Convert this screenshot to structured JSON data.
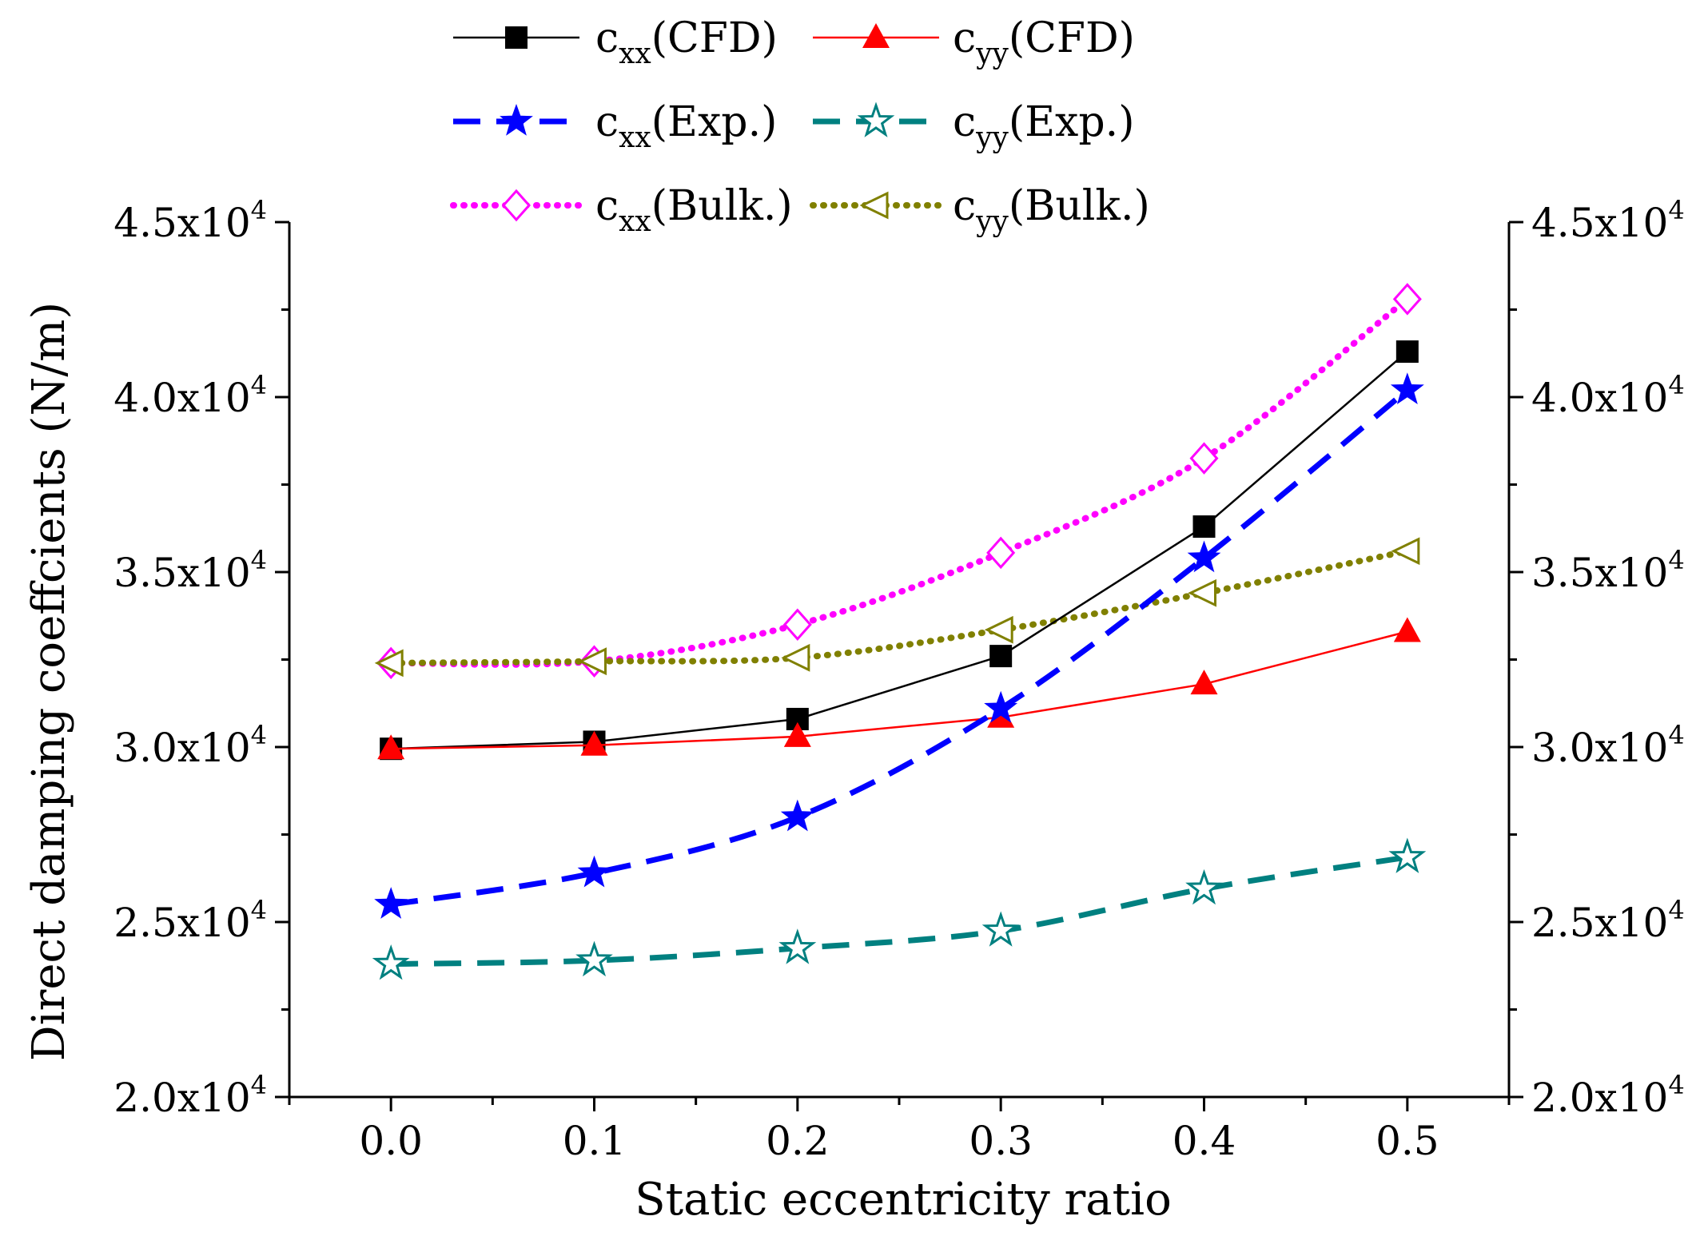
{
  "chart_data": {
    "type": "line",
    "xlabel": "Static eccentricity ratio",
    "ylabel": "Direct damping coeffcients (N/m)",
    "x": [
      0.0,
      0.1,
      0.2,
      0.3,
      0.4,
      0.5
    ],
    "x_tick_labels": [
      "0.0",
      "0.1",
      "0.2",
      "0.3",
      "0.4",
      "0.5"
    ],
    "xlim": [
      -0.05,
      0.55
    ],
    "ylim": [
      20000,
      45000
    ],
    "y_ticks": [
      {
        "value": 20000,
        "mantissa": "2.0x10",
        "exponent": "4"
      },
      {
        "value": 25000,
        "mantissa": "2.5x10",
        "exponent": "4"
      },
      {
        "value": 30000,
        "mantissa": "3.0x10",
        "exponent": "4"
      },
      {
        "value": 35000,
        "mantissa": "3.5x10",
        "exponent": "4"
      },
      {
        "value": 40000,
        "mantissa": "4.0x10",
        "exponent": "4"
      },
      {
        "value": 45000,
        "mantissa": "4.5x10",
        "exponent": "4"
      }
    ],
    "grid": false,
    "legend_position": "top",
    "series": [
      {
        "name": "cxx(CFD)",
        "base": "c",
        "sub": "xx",
        "suffix": "(CFD)",
        "color": "#000000",
        "line": "solid",
        "marker": "square-filled",
        "values": [
          29950,
          30150,
          30800,
          32600,
          36300,
          41300
        ]
      },
      {
        "name": "cyy(CFD)",
        "base": "c",
        "sub": "yy",
        "suffix": "(CFD)",
        "color": "#ff0000",
        "line": "solid",
        "marker": "triangle-up-filled",
        "values": [
          29950,
          30050,
          30300,
          30850,
          31800,
          33300
        ]
      },
      {
        "name": "cxx(Exp.)",
        "base": "c",
        "sub": "xx",
        "suffix": "(Exp.)",
        "color": "#0000ff",
        "line": "dash",
        "marker": "star-filled",
        "values": [
          25500,
          26400,
          28000,
          31100,
          35400,
          40200
        ]
      },
      {
        "name": "cyy(Exp.)",
        "base": "c",
        "sub": "yy",
        "suffix": "(Exp.)",
        "color": "#008080",
        "line": "dash",
        "marker": "star-open",
        "values": [
          23800,
          23900,
          24250,
          24750,
          25950,
          26850
        ]
      },
      {
        "name": "cxx(Bulk.)",
        "base": "c",
        "sub": "xx",
        "suffix": "(Bulk.)",
        "color": "#ff00ff",
        "line": "dot",
        "marker": "diamond-open",
        "values": [
          32400,
          32450,
          33500,
          35550,
          38250,
          42800
        ]
      },
      {
        "name": "cyy(Bulk.)",
        "base": "c",
        "sub": "yy",
        "suffix": "(Bulk.)",
        "color": "#808000",
        "line": "dot",
        "marker": "triangle-left-open",
        "values": [
          32400,
          32450,
          32550,
          33350,
          34400,
          35600
        ]
      }
    ]
  }
}
